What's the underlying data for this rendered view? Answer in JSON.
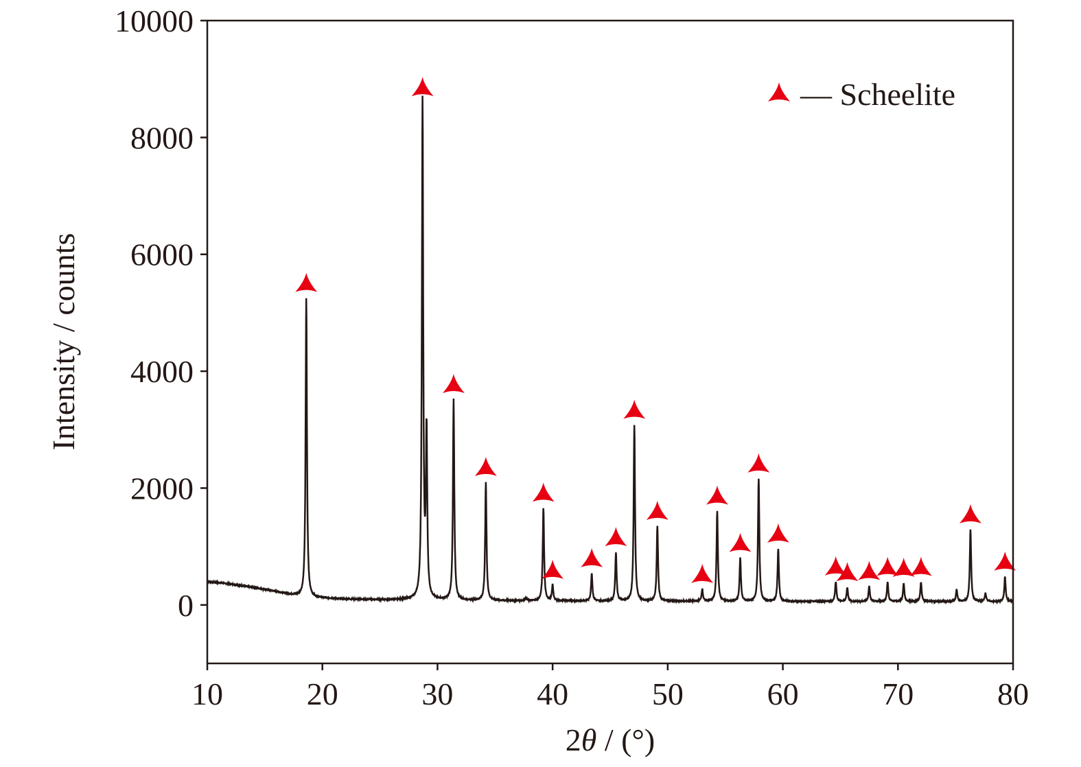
{
  "chart_data": {
    "type": "line",
    "title": "",
    "xlabel_prefix": "2",
    "xlabel_symbol": "θ",
    "xlabel_suffix": " / (°)",
    "ylabel": "Intensity / counts",
    "xlim": [
      10,
      80
    ],
    "ylim": [
      -1000,
      10000
    ],
    "xticks": [
      10,
      20,
      30,
      40,
      50,
      60,
      70,
      80
    ],
    "yticks": [
      0,
      2000,
      4000,
      6000,
      8000,
      10000
    ],
    "grid": false,
    "legend": {
      "placement": "top-right",
      "marker": "red-tri-star",
      "label": "— Scheelite"
    },
    "colors": {
      "line": "#231815",
      "marker": "#e60012"
    },
    "baseline": [
      [
        10,
        400
      ],
      [
        12,
        360
      ],
      [
        14,
        300
      ],
      [
        16,
        230
      ],
      [
        17.5,
        170
      ],
      [
        19,
        130
      ],
      [
        22,
        100
      ],
      [
        26,
        90
      ],
      [
        28,
        95
      ],
      [
        32,
        80
      ],
      [
        40,
        70
      ],
      [
        50,
        65
      ],
      [
        60,
        60
      ],
      [
        70,
        60
      ],
      [
        80,
        60
      ]
    ],
    "peaks": [
      {
        "x": 18.6,
        "y": 5250,
        "marked": true
      },
      {
        "x": 28.7,
        "y": 8600,
        "marked": true
      },
      {
        "x": 29.05,
        "y": 2900,
        "marked": false
      },
      {
        "x": 31.4,
        "y": 3520,
        "marked": true
      },
      {
        "x": 34.2,
        "y": 2100,
        "marked": true
      },
      {
        "x": 37.7,
        "y": 120,
        "marked": false
      },
      {
        "x": 39.2,
        "y": 1660,
        "marked": true
      },
      {
        "x": 40.0,
        "y": 340,
        "marked": true
      },
      {
        "x": 43.4,
        "y": 540,
        "marked": true
      },
      {
        "x": 45.5,
        "y": 900,
        "marked": true
      },
      {
        "x": 47.1,
        "y": 3080,
        "marked": true
      },
      {
        "x": 49.1,
        "y": 1350,
        "marked": true
      },
      {
        "x": 53.0,
        "y": 270,
        "marked": true
      },
      {
        "x": 54.3,
        "y": 1610,
        "marked": true
      },
      {
        "x": 56.3,
        "y": 800,
        "marked": true
      },
      {
        "x": 57.9,
        "y": 2160,
        "marked": true
      },
      {
        "x": 59.6,
        "y": 960,
        "marked": true
      },
      {
        "x": 64.6,
        "y": 400,
        "marked": true
      },
      {
        "x": 65.6,
        "y": 300,
        "marked": true
      },
      {
        "x": 67.5,
        "y": 320,
        "marked": true
      },
      {
        "x": 69.1,
        "y": 390,
        "marked": true
      },
      {
        "x": 70.5,
        "y": 375,
        "marked": true
      },
      {
        "x": 72.0,
        "y": 390,
        "marked": true
      },
      {
        "x": 75.1,
        "y": 260,
        "marked": false
      },
      {
        "x": 76.3,
        "y": 1290,
        "marked": true
      },
      {
        "x": 77.6,
        "y": 200,
        "marked": false
      },
      {
        "x": 79.3,
        "y": 480,
        "marked": true
      }
    ]
  }
}
